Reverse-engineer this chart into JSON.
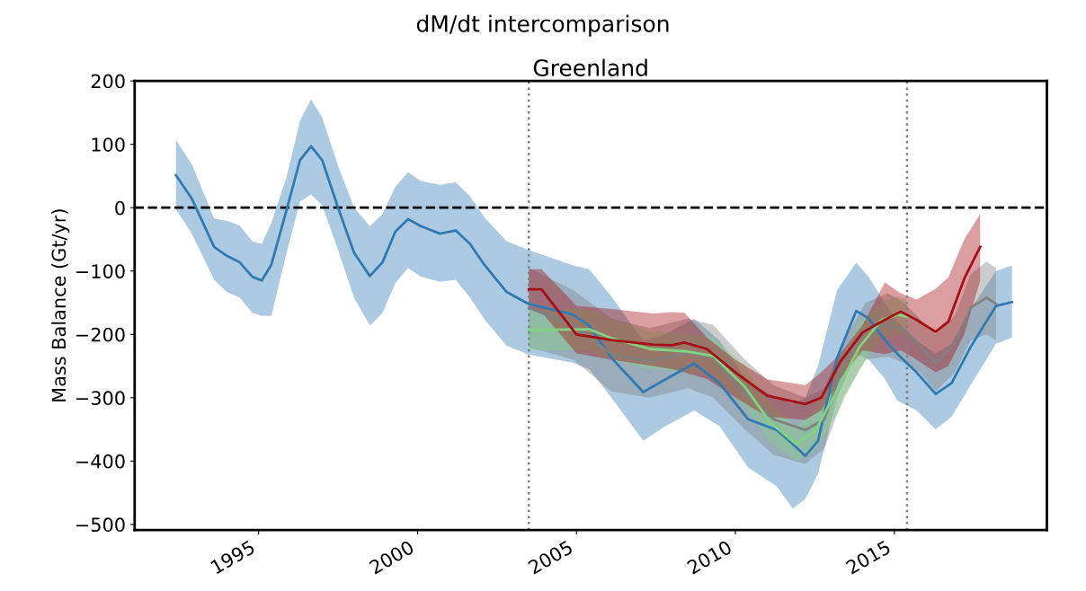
{
  "chart_data": {
    "type": "line",
    "title": "dM/dt intercomparison",
    "subtitle": "Greenland",
    "ylabel": "Mass Balance (Gt/yr)",
    "xlim": [
      1991.1,
      2019.8
    ],
    "ylim": [
      -509,
      200
    ],
    "xticks": [
      1995,
      2000,
      2005,
      2010,
      2015
    ],
    "yticks": [
      {
        "value": -500,
        "label": "−500"
      },
      {
        "value": -400,
        "label": "−400"
      },
      {
        "value": -300,
        "label": "−300"
      },
      {
        "value": -200,
        "label": "−200"
      },
      {
        "value": -100,
        "label": "−100"
      },
      0,
      100,
      200
    ],
    "grid": false,
    "legend": false,
    "marker": "none",
    "line_style": "solid",
    "ref_lines": [
      {
        "axis": "y",
        "value": 0,
        "color": "#000000",
        "line_style": "dashed"
      },
      {
        "axis": "x",
        "value": 2003.5,
        "color": "#808080",
        "line_style": "dotted"
      },
      {
        "axis": "x",
        "value": 2015.4,
        "color": "#808080",
        "line_style": "dotted"
      }
    ],
    "series": [
      {
        "color": "#2f7ab5",
        "x": [
          1992.4,
          1992.9,
          1993.6,
          1994.0,
          1994.4,
          1994.8,
          1995.1,
          1995.4,
          1995.9,
          1996.3,
          1996.65,
          1997.0,
          1997.5,
          1998.0,
          1998.5,
          1998.9,
          1999.3,
          1999.7,
          2000.1,
          2000.7,
          2001.2,
          2001.65,
          2002.1,
          2002.8,
          2003.5,
          2004.9,
          2005.4,
          2006.1,
          2007.1,
          2007.8,
          2008.7,
          2009.5,
          2010.4,
          2011.3,
          2011.8,
          2012.2,
          2012.6,
          2013.2,
          2013.8,
          2014.2,
          2014.7,
          2015.1,
          2015.7,
          2016.3,
          2016.8,
          2017.4,
          2018.2,
          2018.7
        ],
        "values": [
          51,
          14,
          -62,
          -76,
          -86,
          -109,
          -115,
          -90,
          0,
          75,
          97,
          75,
          0,
          -71,
          -108,
          -86,
          -38,
          -18,
          -29,
          -41,
          -36,
          -57,
          -90,
          -133,
          -152,
          -169,
          -186,
          -237,
          -291,
          -271,
          -246,
          -277,
          -334,
          -351,
          -373,
          -392,
          -368,
          -237,
          -163,
          -175,
          -209,
          -231,
          -260,
          -294,
          -277,
          -220,
          -155,
          -149
        ],
        "upper": [
          107,
          68,
          -17,
          -21,
          -28,
          -53,
          -57,
          -24,
          52,
          137,
          171,
          142,
          66,
          0,
          -29,
          -10,
          33,
          56,
          42,
          36,
          40,
          18,
          -15,
          -53,
          -67,
          -91,
          -97,
          -140,
          -210,
          -200,
          -175,
          -210,
          -275,
          -300,
          -310,
          -300,
          -250,
          -130,
          -87,
          -110,
          -150,
          -180,
          -210,
          -230,
          -215,
          -160,
          -100,
          -91
        ],
        "lower": [
          -3,
          -41,
          -114,
          -133,
          -142,
          -166,
          -171,
          -171,
          -67,
          9,
          21,
          4,
          -67,
          -142,
          -186,
          -166,
          -119,
          -95,
          -109,
          -117,
          -114,
          -142,
          -176,
          -218,
          -232,
          -245,
          -255,
          -300,
          -368,
          -345,
          -320,
          -345,
          -410,
          -440,
          -475,
          -460,
          -420,
          -300,
          -230,
          -240,
          -270,
          -305,
          -320,
          -350,
          -330,
          -280,
          -215,
          -205
        ]
      },
      {
        "color": "#808080",
        "x": [
          2003.5,
          2004.9,
          2006.1,
          2007.3,
          2008.5,
          2009.3,
          2010.3,
          2011.2,
          2012.2,
          2012.8,
          2013.4,
          2014.1,
          2014.8,
          2015.3,
          2015.8,
          2016.3,
          2016.9,
          2017.4,
          2017.9,
          2018.2
        ],
        "values": [
          -158,
          -186,
          -231,
          -243,
          -229,
          -237,
          -294,
          -334,
          -351,
          -334,
          -248,
          -192,
          -186,
          -192,
          -217,
          -246,
          -214,
          -158,
          -142,
          -152
        ],
        "upper": [
          -95,
          -130,
          -175,
          -190,
          -175,
          -185,
          -240,
          -280,
          -300,
          -285,
          -210,
          -150,
          -135,
          -150,
          -175,
          -200,
          -170,
          -105,
          -85,
          -95
        ],
        "lower": [
          -220,
          -240,
          -290,
          -300,
          -285,
          -300,
          -350,
          -390,
          -405,
          -380,
          -300,
          -240,
          -235,
          -245,
          -260,
          -290,
          -260,
          -210,
          -200,
          -210
        ]
      },
      {
        "color": "#7fd47f",
        "x": [
          2003.5,
          2005.4,
          2006.1,
          2007.3,
          2008.5,
          2009.3,
          2010.3,
          2011.1,
          2011.9,
          2012.5,
          2013.2,
          2013.9,
          2014.6,
          2015.1,
          2015.4
        ],
        "values": [
          -193,
          -192,
          -206,
          -223,
          -227,
          -234,
          -283,
          -339,
          -373,
          -353,
          -288,
          -220,
          -177,
          -169,
          -172
        ],
        "upper": [
          -160,
          -160,
          -175,
          -195,
          -200,
          -205,
          -250,
          -310,
          -345,
          -320,
          -250,
          -180,
          -150,
          -140,
          -145
        ],
        "lower": [
          -225,
          -225,
          -240,
          -255,
          -260,
          -265,
          -315,
          -370,
          -400,
          -385,
          -325,
          -255,
          -205,
          -200,
          -200
        ]
      },
      {
        "color": "#a50f15",
        "x": [
          2003.5,
          2003.9,
          2005.0,
          2006.1,
          2007.4,
          2008.0,
          2008.4,
          2009.1,
          2010.0,
          2011.0,
          2012.2,
          2012.7,
          2013.3,
          2014.0,
          2014.7,
          2015.2,
          2015.7,
          2016.3,
          2016.7,
          2017.2,
          2017.7
        ],
        "values": [
          -129,
          -129,
          -200,
          -209,
          -216,
          -217,
          -213,
          -223,
          -260,
          -297,
          -310,
          -300,
          -243,
          -197,
          -177,
          -164,
          -177,
          -196,
          -180,
          -112,
          -62
        ],
        "upper": [
          -97,
          -97,
          -155,
          -160,
          -167,
          -165,
          -166,
          -205,
          -240,
          -271,
          -280,
          -260,
          -230,
          -185,
          -118,
          -135,
          -145,
          -128,
          -110,
          -50,
          -10
        ],
        "lower": [
          -160,
          -165,
          -230,
          -240,
          -250,
          -255,
          -260,
          -270,
          -300,
          -330,
          -335,
          -320,
          -270,
          -225,
          -231,
          -225,
          -240,
          -260,
          -250,
          -200,
          -115
        ]
      }
    ]
  }
}
